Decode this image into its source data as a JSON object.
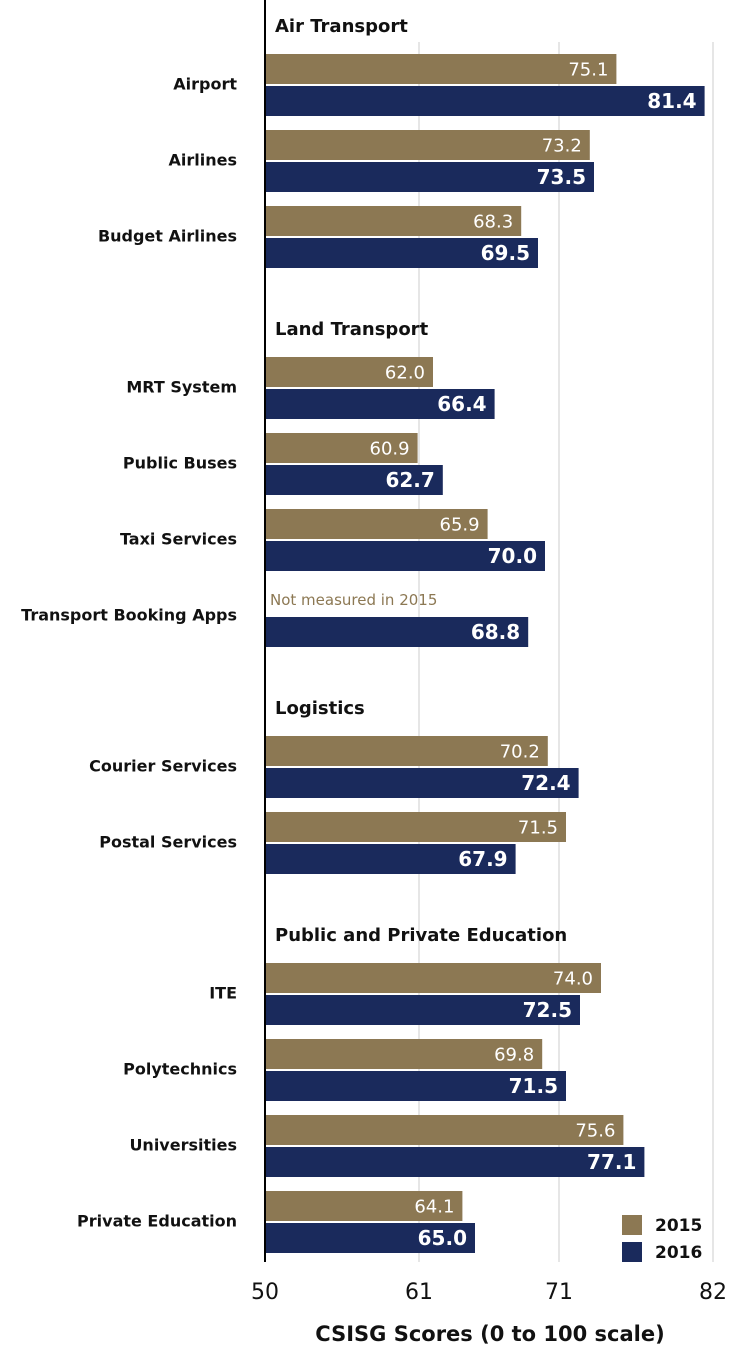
{
  "chart_data": {
    "type": "bar",
    "orientation": "horizontal",
    "xlabel": "CSISG Scores (0 to 100 scale)",
    "categories": [
      "Air Transport",
      "Airport",
      "Airlines",
      "Budget Airlines",
      "Land Transport",
      "MRT System",
      "Public Buses",
      "Taxi Services",
      "Transport Booking Apps",
      "Logistics",
      "Courier Services",
      "Postal Services",
      "Public and Private Education",
      "ITE",
      "Polytechnics",
      "Universities",
      "Private Education"
    ],
    "series": [
      {
        "name": "2015",
        "color": "#8c7853",
        "values": [
          null,
          75.1,
          73.2,
          68.3,
          null,
          62.0,
          60.9,
          65.9,
          null,
          null,
          70.2,
          71.5,
          null,
          74.0,
          69.8,
          75.6,
          64.1
        ],
        "value_labels": [
          null,
          "75.1",
          "73.2",
          "68.3",
          null,
          "62.0",
          "60.9",
          "65.9",
          "Not measured in 2015",
          null,
          "70.2",
          "71.5",
          null,
          "74.0",
          "69.8",
          "75.6",
          "64.1"
        ]
      },
      {
        "name": "2016",
        "color": "#1a2a5c",
        "values": [
          null,
          81.4,
          73.5,
          69.5,
          null,
          66.4,
          62.7,
          70.0,
          68.8,
          null,
          72.4,
          67.9,
          null,
          72.5,
          71.5,
          77.1,
          65.0
        ],
        "value_labels": [
          null,
          "81.4",
          "73.5",
          "69.5",
          null,
          "66.4",
          "62.7",
          "70.0",
          "68.8",
          null,
          "72.4",
          "67.9",
          null,
          "72.5",
          "71.5",
          "77.1",
          "65.0"
        ]
      }
    ],
    "xlim": [
      50,
      82
    ],
    "xticks": [
      50,
      61,
      71,
      82
    ],
    "grid": true,
    "legend": "lower right"
  }
}
